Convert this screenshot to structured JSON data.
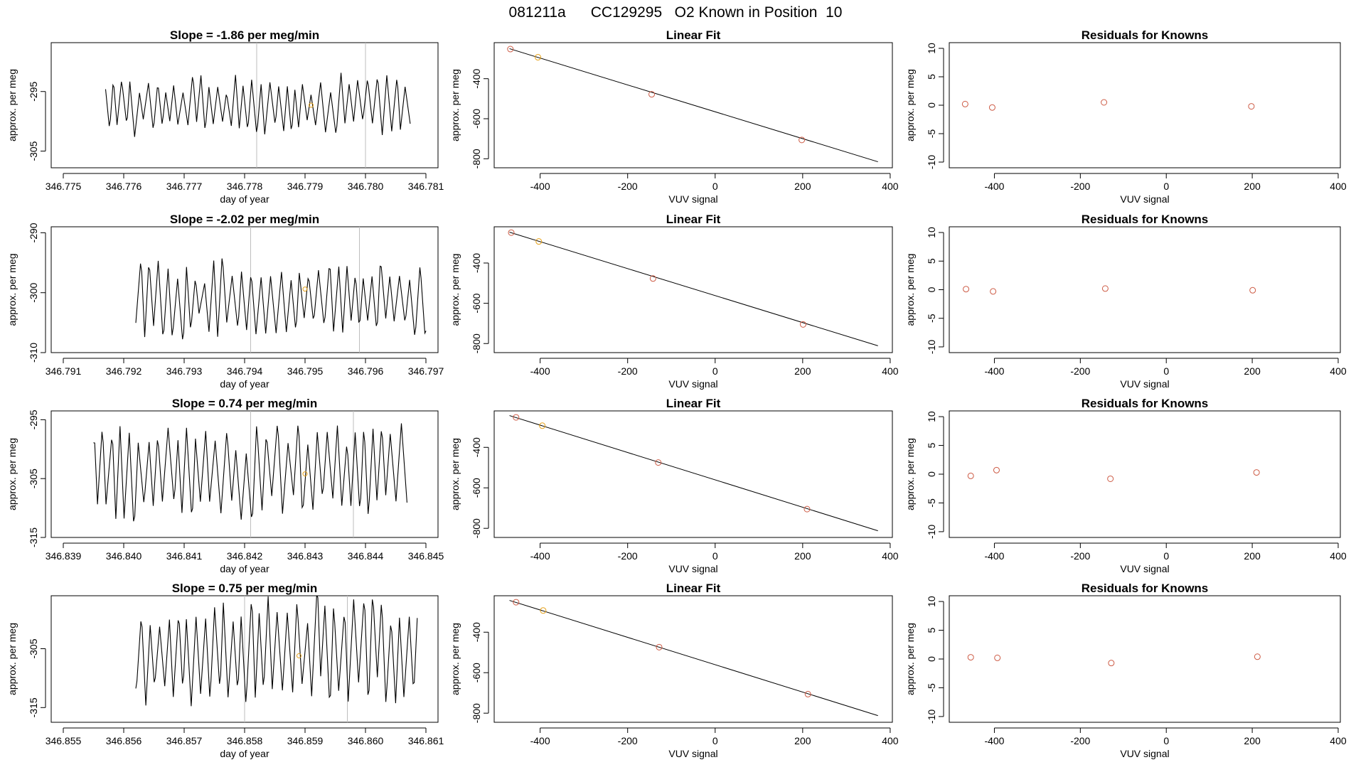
{
  "page_title": "081211a      CC129295   O2 Known in Position  10",
  "colors": {
    "line": "#000000",
    "known_point": "#cd5b45",
    "highlight_point": "#e6a118",
    "vertical_marker": "#bebebe"
  },
  "chart_data": [
    {
      "type": "line",
      "title": "Slope =  -1.86  per meg/min",
      "xlabel": "day of year",
      "ylabel": "approx. per meg",
      "xlim": [
        346.7748,
        346.7812
      ],
      "ylim": [
        -307.8,
        -286.8
      ],
      "x_ticks": [
        "346.775",
        "346.776",
        "346.777",
        "346.778",
        "346.779",
        "346.780",
        "346.781"
      ],
      "x_tick_values": [
        346.775,
        346.776,
        346.777,
        346.778,
        346.779,
        346.78,
        346.781
      ],
      "y_ticks": [
        "-295",
        "-305"
      ],
      "y_tick_values": [
        -295,
        -305
      ],
      "x_start": 346.7757,
      "x_end": 346.7808,
      "wave_center": -297.2,
      "wave_amplitude": 4.2,
      "wave_period": 0.000145,
      "seed": 11,
      "vertical_markers": [
        346.7782,
        346.78
      ],
      "highlight_point": {
        "x": 346.7791,
        "y": -297.3
      }
    },
    {
      "type": "scatter_fit",
      "title": "Linear Fit",
      "xlabel": "VUV signal",
      "ylabel": "approx. per meg",
      "xlim": [
        -505,
        405
      ],
      "ylim": [
        -845,
        -220
      ],
      "x_ticks": [
        "-400",
        "-200",
        "0",
        "200",
        "400"
      ],
      "x_tick_values": [
        -400,
        -200,
        0,
        200,
        400
      ],
      "y_ticks": [
        "-400",
        "-600",
        "-800"
      ],
      "y_tick_values": [
        -400,
        -600,
        -800
      ],
      "points": [
        {
          "x": -468,
          "y": -252
        },
        {
          "x": -145,
          "y": -478
        },
        {
          "x": 198,
          "y": -706
        }
      ],
      "highlight_point": {
        "x": -405,
        "y": -293
      },
      "fit_line": {
        "x": [
          -470,
          372
        ],
        "y": [
          -250,
          -815
        ]
      }
    },
    {
      "type": "scatter",
      "title": "Residuals for Knowns",
      "xlabel": "VUV signal",
      "ylabel": "approx. per meg",
      "xlim": [
        -505,
        405
      ],
      "ylim": [
        -11,
        11
      ],
      "x_ticks": [
        "-400",
        "-200",
        "0",
        "200",
        "400"
      ],
      "x_tick_values": [
        -400,
        -200,
        0,
        200,
        400
      ],
      "y_ticks": [
        "-10",
        "-5",
        "0",
        "5",
        "10"
      ],
      "y_tick_values": [
        -10,
        -5,
        0,
        5,
        10
      ],
      "points": [
        {
          "x": -468,
          "y": 0.2
        },
        {
          "x": -405,
          "y": -0.4
        },
        {
          "x": -145,
          "y": 0.5
        },
        {
          "x": 198,
          "y": -0.2
        }
      ]
    },
    {
      "type": "line",
      "title": "Slope =  -2.02  per meg/min",
      "xlabel": "day of year",
      "ylabel": "approx. per meg",
      "xlim": [
        346.7908,
        346.7972
      ],
      "ylim": [
        -310,
        -289
      ],
      "x_ticks": [
        "346.791",
        "346.792",
        "346.793",
        "346.794",
        "346.795",
        "346.796",
        "346.797"
      ],
      "x_tick_values": [
        346.791,
        346.792,
        346.793,
        346.794,
        346.795,
        346.796,
        346.797
      ],
      "y_ticks": [
        "-290",
        "-300",
        "-310"
      ],
      "y_tick_values": [
        -290,
        -300,
        -310
      ],
      "x_start": 346.7922,
      "x_end": 346.797,
      "wave_center": -301.0,
      "wave_amplitude": 5.5,
      "wave_period": 0.000155,
      "seed": 23,
      "vertical_markers": [
        346.7941,
        346.7959
      ],
      "highlight_point": {
        "x": 346.795,
        "y": -299.4
      }
    },
    {
      "type": "scatter_fit",
      "title": "Linear Fit",
      "xlabel": "VUV signal",
      "ylabel": "approx. per meg",
      "xlim": [
        -505,
        405
      ],
      "ylim": [
        -845,
        -220
      ],
      "x_ticks": [
        "-400",
        "-200",
        "0",
        "200",
        "400"
      ],
      "x_tick_values": [
        -400,
        -200,
        0,
        200,
        400
      ],
      "y_ticks": [
        "-400",
        "-600",
        "-800"
      ],
      "y_tick_values": [
        -400,
        -600,
        -800
      ],
      "points": [
        {
          "x": -466,
          "y": -249
        },
        {
          "x": -142,
          "y": -477
        },
        {
          "x": 201,
          "y": -705
        }
      ],
      "highlight_point": {
        "x": -403,
        "y": -293
      },
      "fit_line": {
        "x": [
          -470,
          372
        ],
        "y": [
          -247,
          -811
        ]
      }
    },
    {
      "type": "scatter",
      "title": "Residuals for Knowns",
      "xlabel": "VUV signal",
      "ylabel": "approx. per meg",
      "xlim": [
        -505,
        405
      ],
      "ylim": [
        -11,
        11
      ],
      "x_ticks": [
        "-400",
        "-200",
        "0",
        "200",
        "400"
      ],
      "x_tick_values": [
        -400,
        -200,
        0,
        200,
        400
      ],
      "y_ticks": [
        "-10",
        "-5",
        "0",
        "5",
        "10"
      ],
      "y_tick_values": [
        -10,
        -5,
        0,
        5,
        10
      ],
      "points": [
        {
          "x": -466,
          "y": 0.1
        },
        {
          "x": -403,
          "y": -0.3
        },
        {
          "x": -142,
          "y": 0.2
        },
        {
          "x": 201,
          "y": -0.1
        }
      ]
    },
    {
      "type": "line",
      "title": "Slope =  0.74  per meg/min",
      "xlabel": "day of year",
      "ylabel": "approx. per meg",
      "xlim": [
        346.8388,
        346.8452
      ],
      "ylim": [
        -315,
        -293.5
      ],
      "x_ticks": [
        "346.839",
        "346.840",
        "346.841",
        "346.842",
        "346.843",
        "346.844",
        "346.845"
      ],
      "x_tick_values": [
        346.839,
        346.84,
        346.841,
        346.842,
        346.843,
        346.844,
        346.845
      ],
      "y_ticks": [
        "-295",
        "-305",
        "-315"
      ],
      "y_tick_values": [
        -295,
        -305,
        -315
      ],
      "x_start": 346.8395,
      "x_end": 346.8447,
      "wave_center": -304.0,
      "wave_amplitude": 7.0,
      "wave_period": 0.00016,
      "seed": 37,
      "vertical_markers": [
        346.8421,
        346.8438
      ],
      "highlight_point": {
        "x": 346.843,
        "y": -304.2
      }
    },
    {
      "type": "scatter_fit",
      "title": "Linear Fit",
      "xlabel": "VUV signal",
      "ylabel": "approx. per meg",
      "xlim": [
        -505,
        405
      ],
      "ylim": [
        -845,
        -220
      ],
      "x_ticks": [
        "-400",
        "-200",
        "0",
        "200",
        "400"
      ],
      "x_tick_values": [
        -400,
        -200,
        0,
        200,
        400
      ],
      "y_ticks": [
        "-400",
        "-600",
        "-800"
      ],
      "y_tick_values": [
        -400,
        -600,
        -800
      ],
      "points": [
        {
          "x": -455,
          "y": -252
        },
        {
          "x": -130,
          "y": -475
        },
        {
          "x": 210,
          "y": -705
        }
      ],
      "highlight_point": {
        "x": -395,
        "y": -293
      },
      "fit_line": {
        "x": [
          -470,
          372
        ],
        "y": [
          -243,
          -812
        ]
      }
    },
    {
      "type": "scatter",
      "title": "Residuals for Knowns",
      "xlabel": "VUV signal",
      "ylabel": "approx. per meg",
      "xlim": [
        -505,
        405
      ],
      "ylim": [
        -11,
        11
      ],
      "x_ticks": [
        "-400",
        "-200",
        "0",
        "200",
        "400"
      ],
      "x_tick_values": [
        -400,
        -200,
        0,
        200,
        400
      ],
      "y_ticks": [
        "-10",
        "-5",
        "0",
        "5",
        "10"
      ],
      "y_tick_values": [
        -10,
        -5,
        0,
        5,
        10
      ],
      "points": [
        {
          "x": -455,
          "y": -0.3
        },
        {
          "x": -395,
          "y": 0.7
        },
        {
          "x": -130,
          "y": -0.8
        },
        {
          "x": 210,
          "y": 0.3
        }
      ]
    },
    {
      "type": "line",
      "title": "Slope =  0.75  per meg/min",
      "xlabel": "day of year",
      "ylabel": "approx. per meg",
      "xlim": [
        346.8548,
        346.8612
      ],
      "ylim": [
        -317.5,
        -296
      ],
      "x_ticks": [
        "346.855",
        "346.856",
        "346.857",
        "346.858",
        "346.859",
        "346.860",
        "346.861"
      ],
      "x_tick_values": [
        346.855,
        346.856,
        346.857,
        346.858,
        346.859,
        346.86,
        346.861
      ],
      "y_ticks": [
        "-305",
        "-315"
      ],
      "y_tick_values": [
        -305,
        -315
      ],
      "x_start": 346.8562,
      "x_end": 346.8609,
      "wave_center": -305.5,
      "wave_amplitude": 8.0,
      "wave_period": 0.000155,
      "seed": 53,
      "vertical_markers": [
        346.858,
        346.8597
      ],
      "highlight_point": {
        "x": 346.8589,
        "y": -306.2
      }
    },
    {
      "type": "scatter_fit",
      "title": "Linear Fit",
      "xlabel": "VUV signal",
      "ylabel": "approx. per meg",
      "xlim": [
        -505,
        405
      ],
      "ylim": [
        -845,
        -220
      ],
      "x_ticks": [
        "-400",
        "-200",
        "0",
        "200",
        "400"
      ],
      "x_tick_values": [
        -400,
        -200,
        0,
        200,
        400
      ],
      "y_ticks": [
        "-400",
        "-600",
        "-800"
      ],
      "y_tick_values": [
        -400,
        -600,
        -800
      ],
      "points": [
        {
          "x": -455,
          "y": -252
        },
        {
          "x": -128,
          "y": -474
        },
        {
          "x": 212,
          "y": -706
        }
      ],
      "highlight_point": {
        "x": -393,
        "y": -293
      },
      "fit_line": {
        "x": [
          -470,
          372
        ],
        "y": [
          -243,
          -812
        ]
      }
    },
    {
      "type": "scatter",
      "title": "Residuals for Knowns",
      "xlabel": "VUV signal",
      "ylabel": "approx. per meg",
      "xlim": [
        -505,
        405
      ],
      "ylim": [
        -11,
        11
      ],
      "x_ticks": [
        "-400",
        "-200",
        "0",
        "200",
        "400"
      ],
      "x_tick_values": [
        -400,
        -200,
        0,
        200,
        400
      ],
      "y_ticks": [
        "-10",
        "-5",
        "0",
        "5",
        "10"
      ],
      "y_tick_values": [
        -10,
        -5,
        0,
        5,
        10
      ],
      "points": [
        {
          "x": -455,
          "y": 0.3
        },
        {
          "x": -393,
          "y": 0.2
        },
        {
          "x": -128,
          "y": -0.7
        },
        {
          "x": 212,
          "y": 0.4
        }
      ]
    }
  ]
}
